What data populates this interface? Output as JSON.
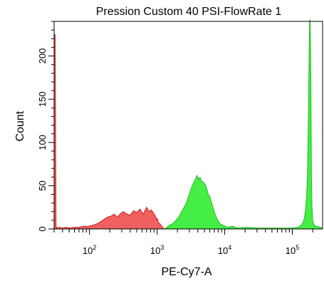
{
  "chart_data": {
    "type": "area",
    "title": "Pression Custom 40 PSI-FlowRate 1",
    "xlabel": "PE-Cy7-A",
    "ylabel": "Count",
    "x_scale": "log",
    "xlim": [
      30,
      280000
    ],
    "ylim": [
      0,
      240
    ],
    "grid": false,
    "legend": "none",
    "x_ticks": [
      {
        "value": 100,
        "base": "10",
        "exp": "2"
      },
      {
        "value": 1000,
        "base": "10",
        "exp": "3"
      },
      {
        "value": 10000,
        "base": "10",
        "exp": "4"
      },
      {
        "value": 100000,
        "base": "10",
        "exp": "5"
      }
    ],
    "y_ticks": [
      {
        "value": 0,
        "label": "0"
      },
      {
        "value": 50,
        "label": "50"
      },
      {
        "value": 100,
        "label": "100"
      },
      {
        "value": 150,
        "label": "150"
      },
      {
        "value": 200,
        "label": "200"
      }
    ],
    "series": [
      {
        "color": "#f06060",
        "stroke": "#cc2020",
        "x": [
          30,
          31,
          32,
          33,
          34,
          36,
          40,
          45,
          52,
          60,
          70,
          80,
          95,
          110,
          130,
          150,
          170,
          190,
          210,
          230,
          260,
          290,
          320,
          360,
          400,
          450,
          500,
          560,
          620,
          700,
          760,
          820,
          880,
          940,
          980,
          1010,
          1050,
          1100,
          1200,
          1300
        ],
        "y": [
          225,
          225,
          0,
          2,
          1,
          2,
          1,
          2,
          1,
          2,
          2,
          3,
          3,
          4,
          6,
          9,
          12,
          14,
          15,
          17,
          14,
          18,
          20,
          17,
          16,
          21,
          19,
          23,
          17,
          25,
          20,
          22,
          19,
          15,
          11,
          12,
          7,
          6,
          2,
          0
        ]
      },
      {
        "color": "#44ee44",
        "stroke": "#22bb22",
        "x": [
          1300,
          1500,
          1700,
          1900,
          2100,
          2300,
          2500,
          2700,
          2900,
          3100,
          3300,
          3500,
          3700,
          3900,
          4100,
          4300,
          4500,
          4800,
          5100,
          5400,
          5700,
          6000,
          6300,
          6700,
          7200,
          7800,
          8500,
          9500,
          11000,
          13000,
          16000,
          20000,
          30000,
          40000,
          60000,
          80000,
          100000,
          120000,
          135000,
          145000,
          152000,
          158000,
          163000,
          167000,
          170000,
          172000,
          174000,
          176000,
          178000,
          180000,
          182000,
          184000,
          186000,
          188000,
          190000,
          192000,
          195000,
          200000,
          210000,
          230000,
          260000,
          280000
        ],
        "y": [
          0,
          4,
          6,
          10,
          14,
          20,
          25,
          30,
          37,
          44,
          50,
          54,
          58,
          62,
          57,
          60,
          56,
          54,
          52,
          47,
          40,
          38,
          32,
          25,
          17,
          11,
          6,
          4,
          2,
          3,
          1,
          2,
          1,
          1,
          1,
          1,
          1,
          2,
          4,
          8,
          14,
          24,
          40,
          60,
          90,
          120,
          155,
          185,
          215,
          240,
          242,
          236,
          210,
          170,
          110,
          60,
          25,
          10,
          4,
          3,
          2,
          1
        ]
      }
    ]
  }
}
